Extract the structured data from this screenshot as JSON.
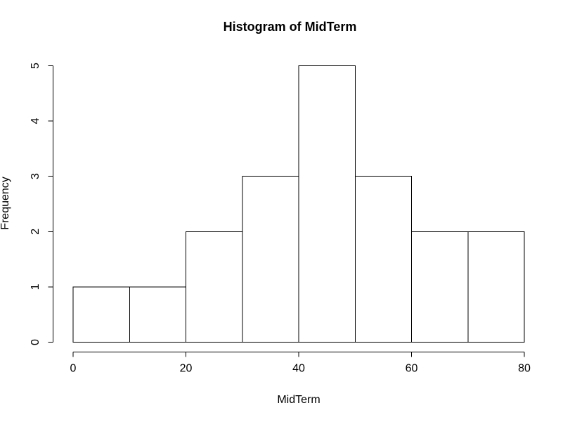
{
  "figure": {
    "background": "#ffffff",
    "foreground": "#000000"
  },
  "chart_data": {
    "type": "bar",
    "subtype": "histogram",
    "title": "Histogram of MidTerm",
    "xlabel": "MidTerm",
    "ylabel": "Frequency",
    "bin_edges": [
      0,
      10,
      20,
      30,
      40,
      50,
      60,
      70,
      80
    ],
    "counts": [
      1,
      1,
      2,
      3,
      5,
      3,
      2,
      2
    ],
    "categories": [
      "0-10",
      "10-20",
      "20-30",
      "30-40",
      "40-50",
      "50-60",
      "60-70",
      "70-80"
    ],
    "xticks": [
      0,
      20,
      40,
      60,
      80
    ],
    "yticks": [
      0,
      1,
      2,
      3,
      4,
      5
    ],
    "xlim": [
      0,
      80
    ],
    "ylim": [
      0,
      5
    ],
    "grid": false,
    "legend": "none",
    "bar_fill": "#ffffff",
    "bar_stroke": "#000000",
    "axis_color": "#000000"
  }
}
